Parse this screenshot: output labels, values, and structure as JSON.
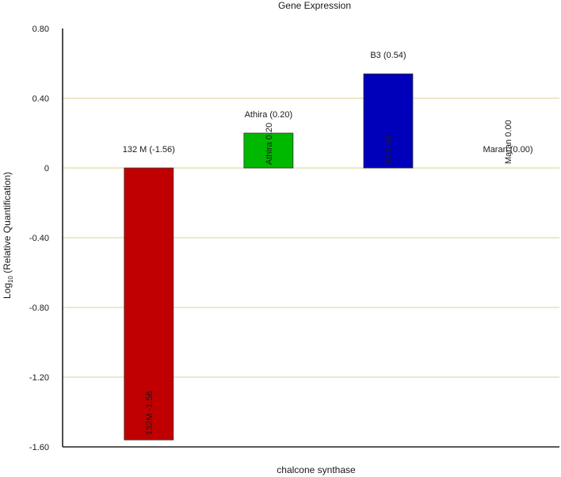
{
  "chart_data": {
    "type": "bar",
    "title": "Gene Expression",
    "xlabel": "chalcone synthase",
    "ylabel": {
      "prefix": "Log",
      "subscript": "10",
      "suffix": " (Relative Quantification)"
    },
    "ylim": [
      -1.6,
      0.8
    ],
    "yticks": [
      0.8,
      0.4,
      0,
      -0.4,
      -0.8,
      -1.2,
      -1.6
    ],
    "ytick_labels": [
      "0.80",
      "0.40",
      "0",
      "-0.40",
      "-0.80",
      "-1.20",
      "-1.60"
    ],
    "grid": true,
    "colors": {
      "grid": "#e2d9a8",
      "axis": "#222222"
    },
    "bars": [
      {
        "category": "132M",
        "value": -1.56,
        "color": "#c00000",
        "top_label": "132 M (-1.56)",
        "inner_label": "132M -1.56"
      },
      {
        "category": "Athira",
        "value": 0.2,
        "color": "#00b800",
        "top_label": "Athira (0.20)",
        "inner_label": "Athira 0.20"
      },
      {
        "category": "B3",
        "value": 0.54,
        "color": "#0000bb",
        "top_label": "B3 (0.54)",
        "inner_label": "B3 0.54"
      },
      {
        "category": "Maran",
        "value": 0.0,
        "color": "#888888",
        "top_label": "Maran (0.00)",
        "inner_label": "Maran 0.00"
      }
    ]
  }
}
